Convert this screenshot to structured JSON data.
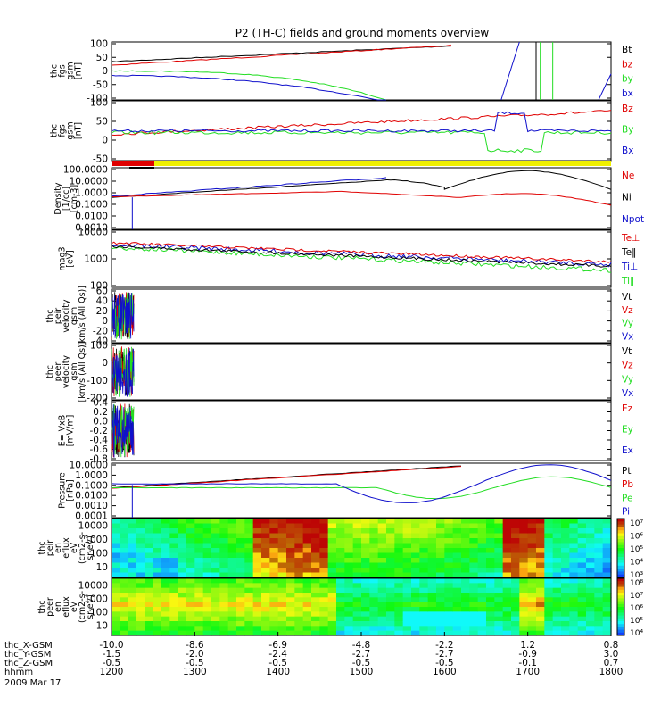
{
  "title": "P2 (TH-C) fields and ground moments overview",
  "colors": {
    "black": "#000000",
    "red": "#e00000",
    "green": "#22dd22",
    "blue": "#1010cc",
    "yellow": "#f0f000"
  },
  "chart_data": [
    {
      "type": "line",
      "ylabel": [
        "thc",
        "fgs",
        "gsm",
        "[nT]"
      ],
      "yticks": [
        "100",
        "50",
        "0",
        "-50",
        "-100"
      ],
      "ylim": [
        -100,
        100
      ],
      "legend": [
        {
          "name": "Bt",
          "color": "black"
        },
        {
          "name": "bz",
          "color": "red"
        },
        {
          "name": "by",
          "color": "green"
        },
        {
          "name": "bx",
          "color": "blue"
        }
      ]
    },
    {
      "type": "line",
      "ylabel": [
        "thc",
        "fgs",
        "gsm",
        "[nT]"
      ],
      "yticks": [
        "100",
        "50",
        "0",
        "-50"
      ],
      "ylim": [
        -75,
        100
      ],
      "legend": [
        {
          "name": "Bz",
          "color": "red"
        },
        {
          "name": "By",
          "color": "green"
        },
        {
          "name": "Bx",
          "color": "blue"
        }
      ]
    },
    {
      "type": "line",
      "ylabel": [
        "Density",
        "[1/cc]",
        "[cm-3]"
      ],
      "yticks": [
        "100.0000",
        "10.0000",
        "1.0000",
        "0.1000",
        "0.0100",
        "0.0010"
      ],
      "scale": "log",
      "legend": [
        {
          "name": "Ne",
          "color": "red"
        },
        {
          "name": "Ni",
          "color": "black"
        },
        {
          "name": "Npot",
          "color": "blue"
        }
      ]
    },
    {
      "type": "line",
      "ylabel": [
        "mag3",
        "[eV]"
      ],
      "yticks": [
        "10000",
        "1000",
        "100"
      ],
      "scale": "log",
      "legend": [
        {
          "name": "Te⊥",
          "color": "red"
        },
        {
          "name": "Te‖",
          "color": "black"
        },
        {
          "name": "Ti⊥",
          "color": "blue"
        },
        {
          "name": "Ti‖",
          "color": "green"
        }
      ]
    },
    {
      "type": "line",
      "ylabel": [
        "thc",
        "peir",
        "velocity",
        "gsm",
        "[km/s (All Qs)]"
      ],
      "yticks": [
        "60",
        "40",
        "20",
        "0",
        "-20",
        "-40"
      ],
      "ylim": [
        -40,
        60
      ],
      "legend": [
        {
          "name": "Vt",
          "color": "black"
        },
        {
          "name": "Vz",
          "color": "red"
        },
        {
          "name": "Vy",
          "color": "green"
        },
        {
          "name": "Vx",
          "color": "blue"
        }
      ]
    },
    {
      "type": "line",
      "ylabel": [
        "thc",
        "peer",
        "velocity",
        "gsm",
        "[km/s (All Qs)]"
      ],
      "yticks": [
        "100",
        "0",
        "-100",
        "-200"
      ],
      "ylim": [
        -200,
        200
      ],
      "legend": [
        {
          "name": "Vt",
          "color": "black"
        },
        {
          "name": "Vz",
          "color": "red"
        },
        {
          "name": "Vy",
          "color": "green"
        },
        {
          "name": "Vx",
          "color": "blue"
        }
      ]
    },
    {
      "type": "line",
      "ylabel": [
        "E=-VxB",
        "[mV/m]"
      ],
      "yticks": [
        "0.4",
        "0.2",
        "0.0",
        "-0.2",
        "-0.4",
        "-0.6",
        "-0.8"
      ],
      "ylim": [
        -0.8,
        0.4
      ],
      "legend": [
        {
          "name": "Ez",
          "color": "red"
        },
        {
          "name": "Ey",
          "color": "green"
        },
        {
          "name": "Ex",
          "color": "blue"
        }
      ]
    },
    {
      "type": "line",
      "ylabel": [
        "Pressure",
        "[nPa]"
      ],
      "yticks": [
        "10.0000",
        "1.0000",
        "0.1000",
        "0.0100",
        "0.0010",
        "0.0001"
      ],
      "scale": "log",
      "legend": [
        {
          "name": "Pt",
          "color": "black"
        },
        {
          "name": "Pb",
          "color": "red"
        },
        {
          "name": "Pe",
          "color": "green"
        },
        {
          "name": "Pi",
          "color": "blue"
        }
      ]
    },
    {
      "type": "heatmap",
      "ylabel": [
        "thc",
        "peir",
        "en",
        "eflux",
        "eV",
        "(cm2-s-",
        "sr-eV)"
      ],
      "yticks": [
        "10000",
        "1000",
        "100",
        "10"
      ],
      "scale": "log",
      "colorbar": [
        "10⁷",
        "10⁶",
        "10⁵",
        "10⁴",
        "10³"
      ]
    },
    {
      "type": "heatmap",
      "ylabel": [
        "thc",
        "peer",
        "en",
        "eflux",
        "eV",
        "(cm2-s-",
        "sr-eV)"
      ],
      "yticks": [
        "10000",
        "1000",
        "100",
        "10"
      ],
      "scale": "log",
      "colorbar": [
        "10⁸",
        "10⁷",
        "10⁶",
        "10⁵",
        "10⁴"
      ]
    }
  ],
  "xaxis": {
    "rows": [
      {
        "label": "thc_X-GSM",
        "values": [
          "-10.0",
          "-8.6",
          "-6.9",
          "-4.8",
          "-2.2",
          "1.2",
          "0.8"
        ]
      },
      {
        "label": "thc_Y-GSM",
        "values": [
          "-1.5",
          "-2.0",
          "-2.4",
          "-2.7",
          "-2.7",
          "-0.9",
          "3.0"
        ]
      },
      {
        "label": "thc_Z-GSM",
        "values": [
          "-0.5",
          "-0.5",
          "-0.5",
          "-0.5",
          "-0.5",
          "-0.1",
          "0.7"
        ]
      },
      {
        "label": "hhmm",
        "values": [
          "1200",
          "1300",
          "1400",
          "1500",
          "1600",
          "1700",
          "1800"
        ]
      }
    ],
    "date": "2009 Mar 17"
  }
}
